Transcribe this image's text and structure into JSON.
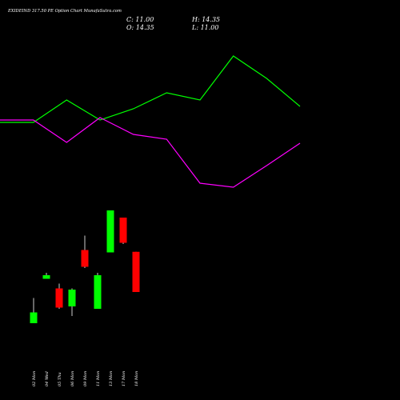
{
  "chart_data": {
    "type": "candlestick",
    "title": "EXIDEIND 317.50 PE Option  Chart MunafaSutra.com",
    "ohlc_readout": {
      "c_label": "C:",
      "c_value": "11.00",
      "o_label": "O:",
      "o_value": "14.35",
      "h_label": "H:",
      "h_value": "14.35",
      "l_label": "L:",
      "l_value": "11.00"
    },
    "categories": [
      "02 Mon",
      "04 Wed",
      "05 Thu",
      "06 Mon",
      "09 Mon",
      "11 Mon",
      "13 Mon",
      "17 Mon",
      "18 Mon"
    ],
    "candles": [
      {
        "open": 8.4,
        "high": 10.5,
        "low": 8.4,
        "close": 9.3
      },
      {
        "open": 12.1,
        "high": 12.6,
        "low": 12.1,
        "close": 12.4
      },
      {
        "open": 11.3,
        "high": 11.7,
        "low": 9.6,
        "close": 9.7
      },
      {
        "open": 9.8,
        "high": 11.3,
        "low": 9.0,
        "close": 11.2
      },
      {
        "open": 14.5,
        "high": 15.7,
        "low": 13.0,
        "close": 13.1
      },
      {
        "open": 9.6,
        "high": 12.6,
        "low": 9.6,
        "close": 12.4
      },
      {
        "open": 14.3,
        "high": 17.8,
        "low": 14.3,
        "close": 17.8
      },
      {
        "open": 17.2,
        "high": 17.2,
        "low": 15.0,
        "close": 15.1
      },
      {
        "open": 14.35,
        "high": 14.35,
        "low": 11.0,
        "close": 11.0
      }
    ],
    "overlay_lines": [
      {
        "color": "#00ff00",
        "values": [
          153,
          153,
          125,
          150,
          136,
          116,
          125,
          70,
          98,
          133
        ]
      },
      {
        "color": "#ff00ff",
        "values": [
          150,
          150,
          178,
          147,
          168,
          174,
          229,
          234,
          207,
          179
        ]
      }
    ],
    "up_color": "#00ff00",
    "down_color": "#ff0000"
  }
}
